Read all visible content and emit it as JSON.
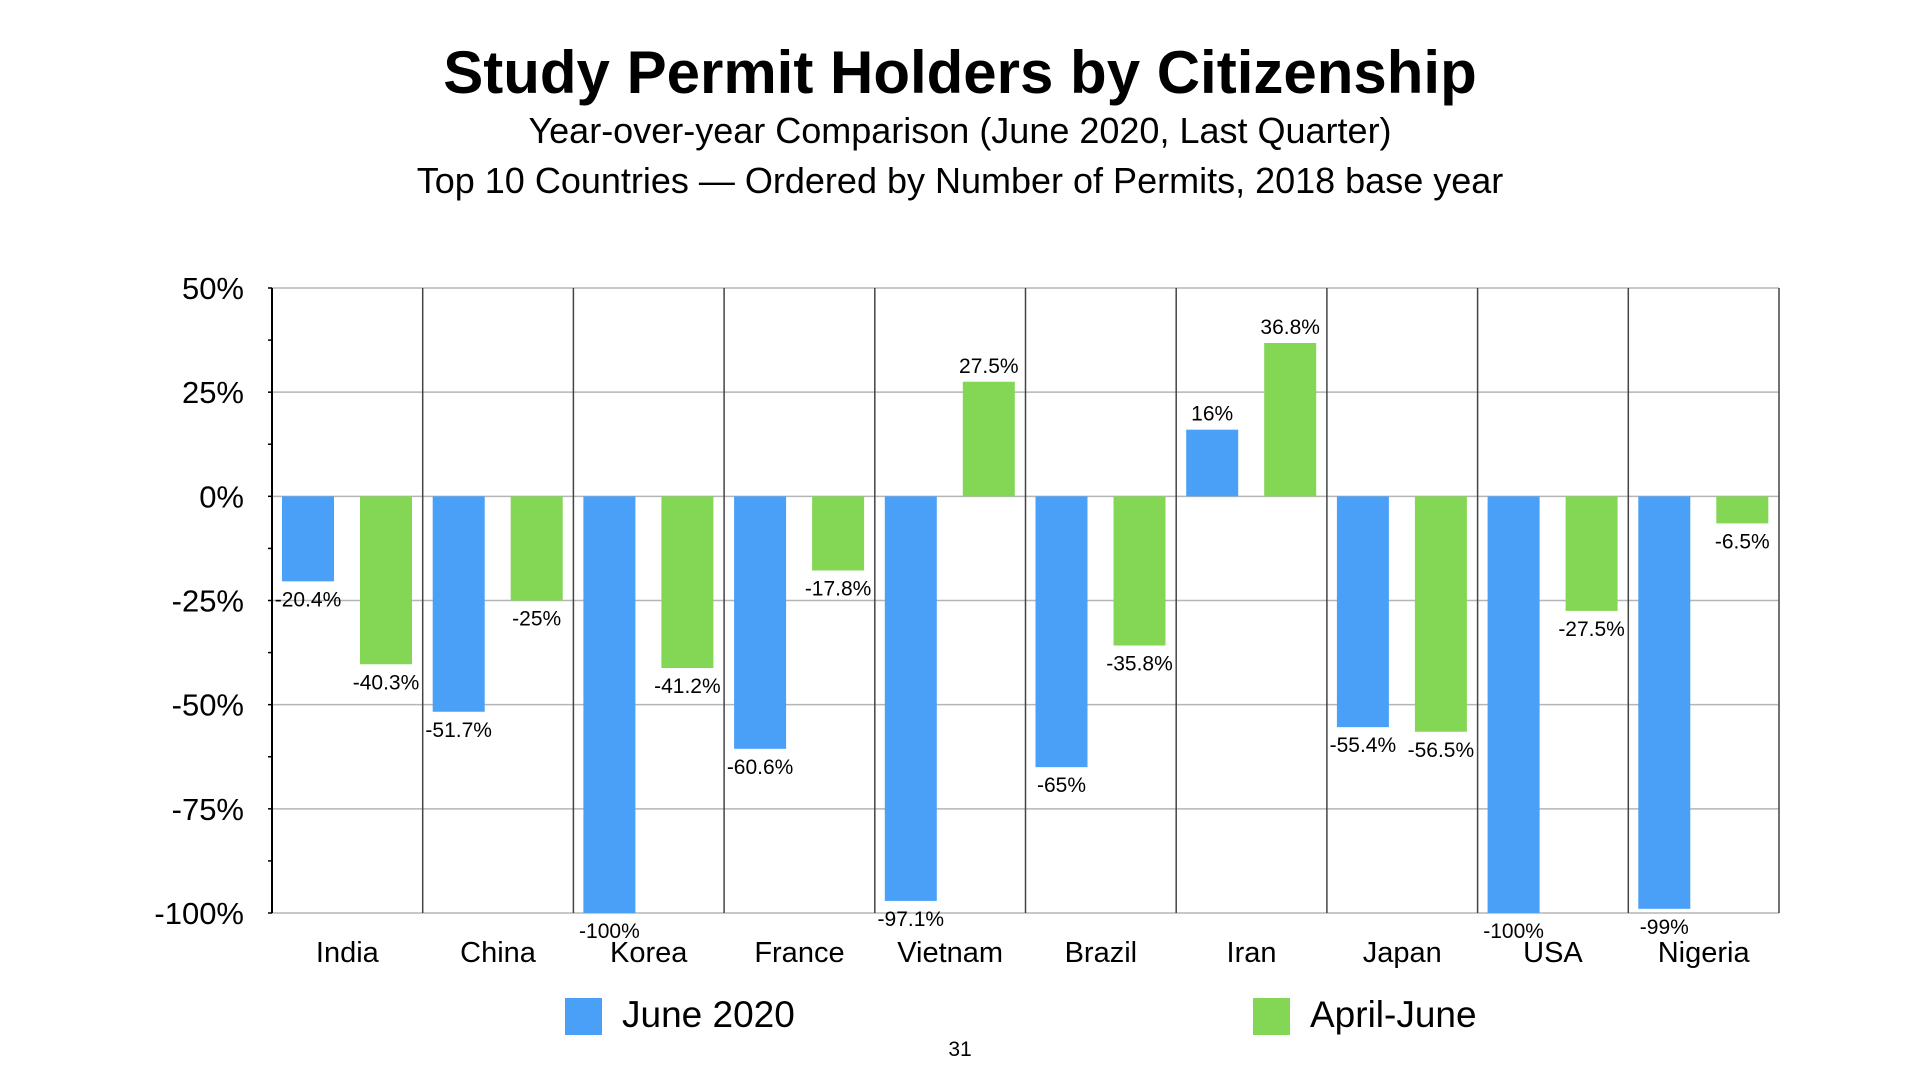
{
  "chart_data": {
    "type": "bar",
    "title": "Study Permit Holders by Citizenship",
    "subtitle": [
      "Year-over-year Comparison (June 2020, Last Quarter)",
      "Top 10 Countries — Ordered by Number of Permits, 2018 base year"
    ],
    "categories": [
      "India",
      "China",
      "Korea",
      "France",
      "Vietnam",
      "Brazil",
      "Iran",
      "Japan",
      "USA",
      "Nigeria"
    ],
    "series": [
      {
        "name": "June 2020",
        "color": "#4aa0f7",
        "values": [
          -20.4,
          -51.7,
          -100,
          -60.6,
          -97.1,
          -65,
          16,
          -55.4,
          -100,
          -99
        ],
        "labels": [
          "-20.4%",
          "-51.7%",
          "-100%",
          "-60.6%",
          "-97.1%",
          "-65%",
          "16%",
          "-55.4%",
          "-100%",
          "-99%"
        ]
      },
      {
        "name": "April-June",
        "color": "#84d655",
        "values": [
          -40.3,
          -25,
          -41.2,
          -17.8,
          27.5,
          -35.8,
          36.8,
          -56.5,
          -27.5,
          -6.5
        ],
        "labels": [
          "-40.3%",
          "-25%",
          "-41.2%",
          "-17.8%",
          "27.5%",
          "-35.8%",
          "36.8%",
          "-56.5%",
          "-27.5%",
          "-6.5%"
        ]
      }
    ],
    "ylim": [
      -100,
      50
    ],
    "yticks": [
      50,
      25,
      0,
      -25,
      -50,
      -75,
      -100
    ],
    "ytick_labels": [
      "50%",
      "25%",
      "0%",
      "-25%",
      "-50%",
      "-75%",
      "-100%"
    ],
    "xlabel": "",
    "ylabel": "",
    "grid": true,
    "legend": "bottom"
  },
  "page_number": "31"
}
